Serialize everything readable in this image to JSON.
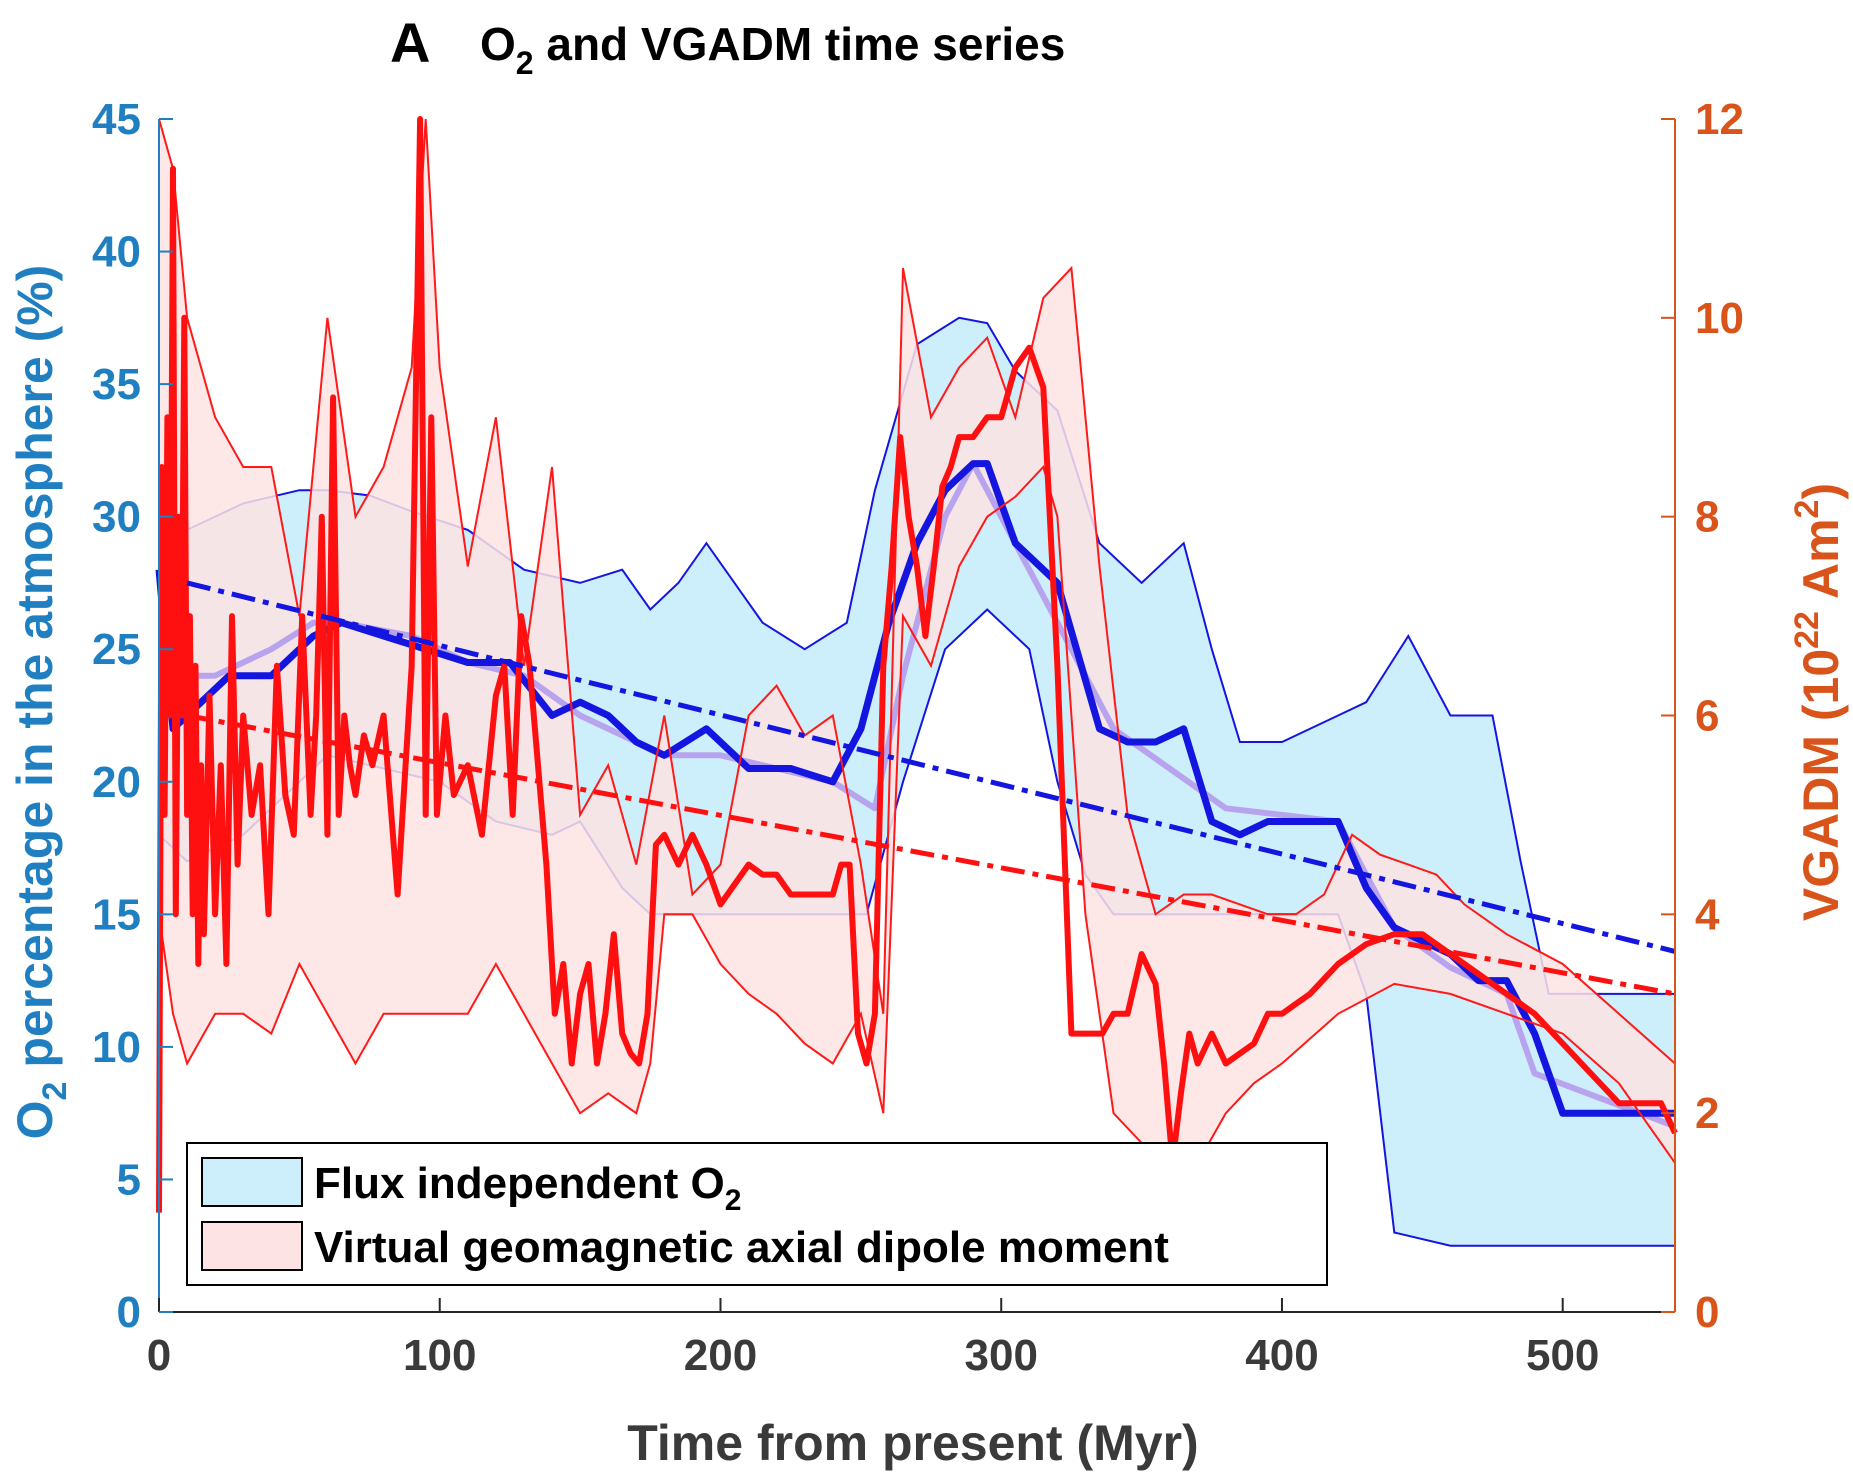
{
  "chart_data": {
    "type": "line",
    "panel_label": "A",
    "title_parts": [
      "O",
      "2",
      " and VGADM time series"
    ],
    "xlabel": "Time from present (Myr)",
    "ylabel_left_parts": [
      "O",
      "2",
      " percentage in the atmosphere (%)"
    ],
    "ylabel_right_parts": [
      "VGADM (10",
      "22",
      " Am",
      "2",
      ")"
    ],
    "xlim": [
      0,
      540
    ],
    "ylim_left": [
      0,
      45
    ],
    "ylim_right": [
      0,
      12
    ],
    "xticks": [
      0,
      100,
      200,
      300,
      400,
      500
    ],
    "yticks_left": [
      0,
      5,
      10,
      15,
      20,
      25,
      30,
      35,
      40,
      45
    ],
    "yticks_right": [
      0,
      2,
      4,
      6,
      8,
      10,
      12
    ],
    "left_axis_color": "#1f7fc0",
    "right_axis_color": "#d9541a",
    "legend_position": "bottom-left",
    "legend": [
      {
        "label_parts": [
          "Flux independent O",
          "2"
        ],
        "fill": "#cdeefb",
        "edge": "#000000"
      },
      {
        "label_parts": [
          "Virtual geomagnetic axial dipole moment"
        ],
        "fill": "#fde3e3",
        "edge": "#000000"
      }
    ],
    "o2_band_upper": {
      "x": [
        0,
        10,
        30,
        50,
        60,
        75,
        90,
        110,
        130,
        150,
        165,
        175,
        185,
        195,
        205,
        215,
        230,
        245,
        255,
        270,
        285,
        295,
        305,
        320,
        335,
        350,
        365,
        375,
        385,
        400,
        420,
        430,
        445,
        460,
        475,
        485,
        495,
        540
      ],
      "y": [
        28.5,
        29.5,
        30.5,
        31,
        31,
        30.8,
        30.2,
        29.5,
        28,
        27.5,
        28,
        26.5,
        27.5,
        29,
        27.5,
        26,
        25,
        26,
        31,
        36.5,
        37.5,
        37.3,
        35.5,
        34,
        29,
        27.5,
        29,
        25,
        21.5,
        21.5,
        22.5,
        23,
        25.5,
        22.5,
        22.5,
        17,
        12,
        12
      ]
    },
    "o2_band_lower": {
      "x": [
        0,
        10,
        30,
        50,
        60,
        80,
        100,
        120,
        140,
        150,
        165,
        175,
        185,
        200,
        220,
        240,
        252,
        265,
        280,
        295,
        310,
        320,
        330,
        340,
        350,
        380,
        420,
        430,
        440,
        460,
        540
      ],
      "y": [
        18,
        17,
        18,
        20,
        21,
        20.5,
        20,
        18.5,
        18,
        18.5,
        16,
        15,
        15,
        15,
        15,
        15,
        15,
        20,
        25,
        26.5,
        25,
        20,
        16.5,
        15,
        15,
        15,
        15,
        12,
        3,
        2.5,
        2.5
      ]
    },
    "o2_mean": {
      "x": [
        0,
        5,
        15,
        25,
        40,
        55,
        65,
        80,
        95,
        110,
        125,
        140,
        150,
        160,
        170,
        180,
        195,
        210,
        225,
        240,
        250,
        260,
        270,
        280,
        290,
        295,
        305,
        320,
        335,
        345,
        355,
        365,
        375,
        385,
        395,
        410,
        420,
        430,
        440,
        450,
        460,
        470,
        480,
        490,
        500,
        540
      ],
      "y": [
        28,
        22,
        23,
        24,
        24,
        25.5,
        26,
        25.5,
        25,
        24.5,
        24.5,
        22.5,
        23,
        22.5,
        21.5,
        21,
        22,
        20.5,
        20.5,
        20,
        22,
        26,
        29,
        31,
        32,
        32,
        29,
        27.5,
        22,
        21.5,
        21.5,
        22,
        18.5,
        18,
        18.5,
        18.5,
        18.5,
        16,
        14.5,
        14,
        13.5,
        12.5,
        12.5,
        10.5,
        7.5,
        7.5
      ]
    },
    "o2_median": {
      "x": [
        0,
        20,
        40,
        55,
        65,
        90,
        110,
        130,
        150,
        170,
        180,
        200,
        220,
        240,
        255,
        265,
        280,
        290,
        300,
        320,
        340,
        380,
        420,
        430,
        440,
        460,
        480,
        490,
        540
      ],
      "y": [
        24,
        24,
        25,
        26,
        26,
        25.5,
        24.5,
        24,
        22.5,
        21.5,
        21,
        21,
        20.5,
        20,
        19,
        24,
        30,
        32,
        30,
        26,
        22,
        19,
        18.5,
        16.5,
        14.5,
        13,
        12,
        9,
        7
      ]
    },
    "o2_trend": {
      "x": [
        10,
        540
      ],
      "y": [
        27.5,
        13.6
      ]
    },
    "vgadm_band_upper": {
      "x": [
        0,
        5,
        10,
        20,
        30,
        40,
        50,
        60,
        70,
        80,
        90,
        95,
        100,
        110,
        120,
        130,
        140,
        150,
        160,
        170,
        180,
        190,
        200,
        210,
        220,
        230,
        240,
        250,
        258,
        265,
        275,
        285,
        295,
        305,
        315,
        325,
        335,
        345,
        355,
        365,
        375,
        385,
        395,
        405,
        415,
        425,
        435,
        445,
        455,
        465,
        480,
        500,
        520,
        540
      ],
      "y": [
        12,
        11.5,
        10,
        9,
        8.5,
        8.5,
        7,
        10,
        8,
        8.5,
        9.5,
        12,
        9.5,
        7.5,
        9,
        6.5,
        8.5,
        5,
        5.5,
        4.5,
        6,
        4.2,
        4.5,
        6,
        6.3,
        5.8,
        6,
        4.5,
        3,
        10.5,
        9,
        9.5,
        9.8,
        9,
        10.2,
        10.5,
        7.5,
        5,
        4,
        4.2,
        4.2,
        4.1,
        4,
        4,
        4.2,
        4.8,
        4.6,
        4.5,
        4.4,
        4.1,
        3.8,
        3.5,
        3,
        2.5
      ]
    },
    "vgadm_band_lower": {
      "x": [
        0,
        5,
        10,
        20,
        30,
        40,
        50,
        60,
        70,
        80,
        90,
        100,
        110,
        120,
        130,
        140,
        150,
        160,
        170,
        175,
        180,
        190,
        200,
        210,
        220,
        230,
        240,
        250,
        258,
        265,
        275,
        285,
        295,
        305,
        315,
        320,
        330,
        340,
        350,
        360,
        365,
        370,
        380,
        390,
        400,
        420,
        440,
        460,
        480,
        500,
        520,
        540
      ],
      "y": [
        4,
        3,
        2.5,
        3,
        3,
        2.8,
        3.5,
        3,
        2.5,
        3,
        3,
        3,
        3,
        3.5,
        3,
        2.5,
        2,
        2.2,
        2,
        2.5,
        4,
        4,
        3.5,
        3.2,
        3,
        2.7,
        2.5,
        3,
        2,
        7,
        6.5,
        7.5,
        8,
        8.2,
        8.5,
        8,
        4,
        2,
        1.7,
        1.3,
        1,
        1.5,
        2,
        2.3,
        2.5,
        3,
        3.3,
        3.2,
        3,
        2.8,
        2.3,
        1.5
      ]
    },
    "vgadm": {
      "x": [
        0,
        1,
        2,
        3,
        4,
        5,
        6,
        7,
        8,
        9,
        10,
        11,
        12,
        13,
        14,
        15,
        16,
        18,
        20,
        22,
        24,
        26,
        28,
        30,
        33,
        36,
        39,
        42,
        45,
        48,
        51,
        54,
        56,
        58,
        60,
        62,
        64,
        66,
        68,
        70,
        73,
        76,
        80,
        85,
        90,
        93,
        95,
        97,
        99,
        102,
        105,
        110,
        115,
        120,
        123,
        126,
        129,
        132,
        135,
        138,
        141,
        144,
        147,
        150,
        153,
        156,
        159,
        162,
        165,
        168,
        171,
        174,
        177,
        180,
        185,
        190,
        195,
        200,
        205,
        210,
        215,
        220,
        225,
        230,
        235,
        240,
        243,
        246,
        249,
        252,
        255,
        258,
        261,
        264,
        267,
        270,
        273,
        276,
        279,
        282,
        285,
        290,
        295,
        300,
        305,
        310,
        315,
        320,
        325,
        330,
        333,
        336,
        340,
        345,
        350,
        355,
        358,
        361,
        364,
        367,
        370,
        375,
        380,
        385,
        390,
        395,
        400,
        405,
        410,
        420,
        430,
        440,
        450,
        460,
        470,
        480,
        490,
        500,
        510,
        520,
        530,
        535,
        540
      ],
      "y": [
        1,
        8.5,
        5,
        9,
        6,
        11.5,
        4,
        8,
        6,
        10,
        5,
        7,
        4,
        6.5,
        3.5,
        5.5,
        3.8,
        6.2,
        4,
        5.5,
        3.5,
        7,
        4.5,
        6,
        5,
        5.5,
        4,
        6.5,
        5.2,
        4.8,
        7,
        5,
        6,
        8,
        4.8,
        9.2,
        5,
        6,
        5.5,
        5.2,
        5.8,
        5.5,
        6,
        4.2,
        6.5,
        12,
        5,
        9,
        5,
        6,
        5.2,
        5.5,
        4.8,
        6.2,
        6.5,
        5,
        7,
        6.5,
        5.5,
        4.5,
        3,
        3.5,
        2.5,
        3.2,
        3.5,
        2.5,
        3,
        3.8,
        2.8,
        2.6,
        2.5,
        3,
        4.7,
        4.8,
        4.5,
        4.8,
        4.5,
        4.1,
        4.3,
        4.5,
        4.4,
        4.4,
        4.2,
        4.2,
        4.2,
        4.2,
        4.5,
        4.5,
        2.8,
        2.5,
        3,
        6.5,
        7.5,
        8.8,
        8,
        7.5,
        6.8,
        7.5,
        8.3,
        8.5,
        8.8,
        8.8,
        9,
        9,
        9.5,
        9.7,
        9.3,
        6.5,
        2.8,
        2.8,
        2.8,
        2.8,
        3,
        3,
        3.6,
        3.3,
        2.5,
        1.5,
        2.2,
        2.8,
        2.5,
        2.8,
        2.5,
        2.6,
        2.7,
        3,
        3,
        3.1,
        3.2,
        3.5,
        3.7,
        3.8,
        3.8,
        3.6,
        3.4,
        3.2,
        3,
        2.7,
        2.4,
        2.1,
        2.1,
        2.1,
        1.8
      ]
    },
    "vgadm_trend": {
      "x": [
        10,
        540
      ],
      "y": [
        6,
        3.2
      ]
    }
  }
}
